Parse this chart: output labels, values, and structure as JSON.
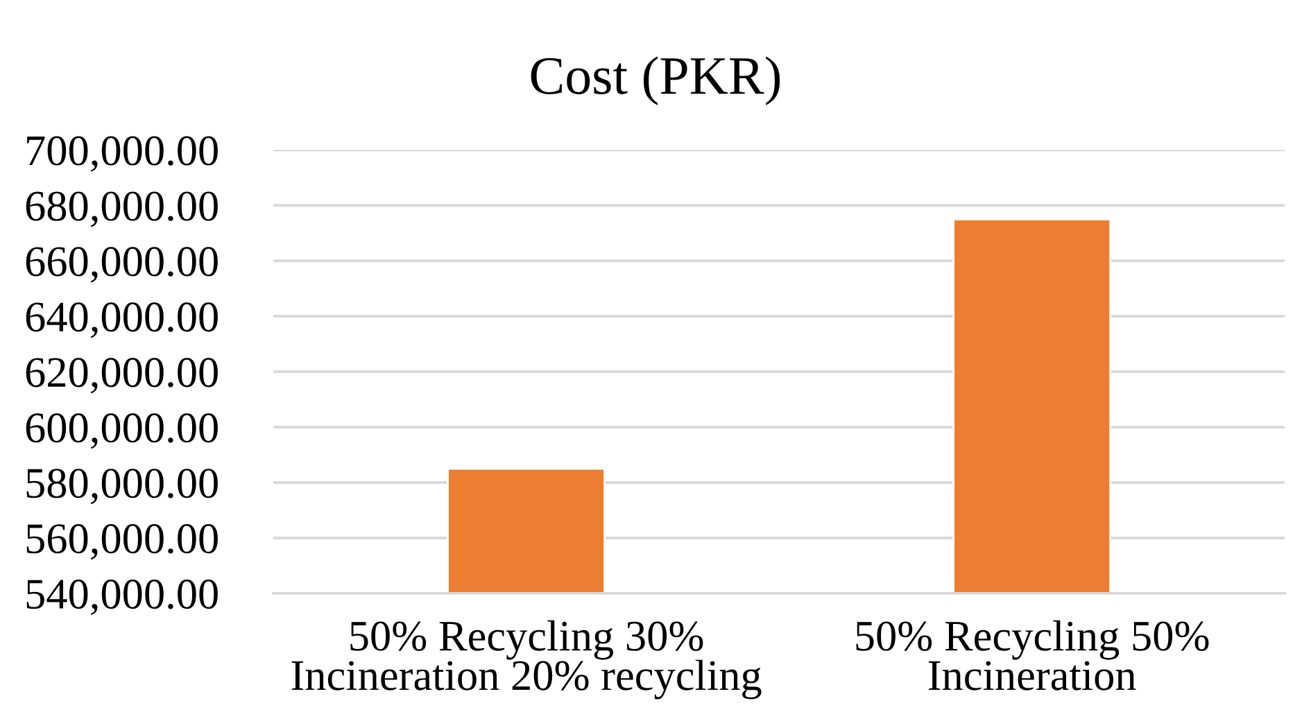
{
  "chart_data": {
    "type": "bar",
    "title": "Cost (PKR)",
    "categories": [
      "50% Recycling 30% Incineration 20% recycling",
      "50% Recycling 50% Incineration"
    ],
    "values": [
      585000,
      675000
    ],
    "color": "#ed7d31",
    "ylim": [
      540000,
      700000
    ],
    "yticks": [
      {
        "value": 540000,
        "label": "540,000.00"
      },
      {
        "value": 560000,
        "label": "560,000.00"
      },
      {
        "value": 580000,
        "label": "580,000.00"
      },
      {
        "value": 600000,
        "label": "600,000.00"
      },
      {
        "value": 620000,
        "label": "620,000.00"
      },
      {
        "value": 640000,
        "label": "640,000.00"
      },
      {
        "value": 660000,
        "label": "660,000.00"
      },
      {
        "value": 680000,
        "label": "680,000.00"
      },
      {
        "value": 700000,
        "label": "700,000.00"
      }
    ],
    "grid": "y"
  }
}
